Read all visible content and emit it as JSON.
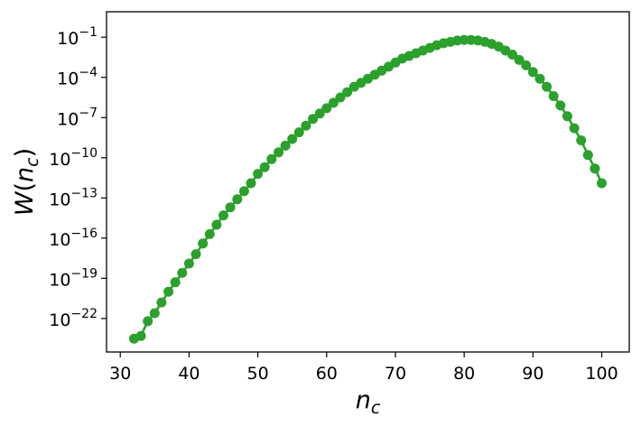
{
  "chart_data": {
    "type": "line",
    "title": "",
    "xlabel": "n_c",
    "ylabel": "W(n_c)",
    "xlim": [
      28,
      104
    ],
    "ylim_log10": [
      -24.5,
      0.9
    ],
    "y_scale": "log",
    "grid": false,
    "legend": "none",
    "x_ticks": [
      {
        "value": 30,
        "label": "30"
      },
      {
        "value": 40,
        "label": "40"
      },
      {
        "value": 50,
        "label": "50"
      },
      {
        "value": 60,
        "label": "60"
      },
      {
        "value": 70,
        "label": "70"
      },
      {
        "value": 80,
        "label": "80"
      },
      {
        "value": 90,
        "label": "90"
      },
      {
        "value": 100,
        "label": "100"
      }
    ],
    "y_ticks": [
      {
        "log10": -1,
        "base": "10",
        "exp": "−1"
      },
      {
        "log10": -4,
        "base": "10",
        "exp": "−4"
      },
      {
        "log10": -7,
        "base": "10",
        "exp": "−7"
      },
      {
        "log10": -10,
        "base": "10",
        "exp": "−10"
      },
      {
        "log10": -13,
        "base": "10",
        "exp": "−13"
      },
      {
        "log10": -16,
        "base": "10",
        "exp": "−16"
      },
      {
        "log10": -19,
        "base": "10",
        "exp": "−19"
      },
      {
        "log10": -22,
        "base": "10",
        "exp": "−22"
      }
    ],
    "series": [
      {
        "color": "#2ca02c",
        "x": [
          32,
          33,
          34,
          35,
          36,
          37,
          38,
          39,
          40,
          41,
          42,
          43,
          44,
          45,
          46,
          47,
          48,
          49,
          50,
          51,
          52,
          53,
          54,
          55,
          56,
          57,
          58,
          59,
          60,
          61,
          62,
          63,
          64,
          65,
          66,
          67,
          68,
          69,
          70,
          71,
          72,
          73,
          74,
          75,
          76,
          77,
          78,
          79,
          80,
          81,
          82,
          83,
          84,
          85,
          86,
          87,
          88,
          89,
          90,
          91,
          92,
          93,
          94,
          95,
          96,
          97,
          98,
          99,
          100
        ],
        "log10_y": [
          -23.5,
          -23.3,
          -22.2,
          -21.6,
          -20.8,
          -20.0,
          -19.3,
          -18.6,
          -17.9,
          -17.2,
          -16.4,
          -15.7,
          -15.0,
          -14.3,
          -13.7,
          -13.1,
          -12.5,
          -11.9,
          -11.2,
          -10.7,
          -10.1,
          -9.6,
          -9.1,
          -8.6,
          -8.1,
          -7.6,
          -7.1,
          -6.7,
          -6.3,
          -5.9,
          -5.5,
          -5.1,
          -4.7,
          -4.4,
          -4.1,
          -3.8,
          -3.5,
          -3.2,
          -2.9,
          -2.6,
          -2.4,
          -2.2,
          -2.0,
          -1.8,
          -1.6,
          -1.45,
          -1.35,
          -1.25,
          -1.2,
          -1.2,
          -1.25,
          -1.35,
          -1.5,
          -1.7,
          -2.0,
          -2.3,
          -2.7,
          -3.1,
          -3.6,
          -4.1,
          -4.7,
          -5.4,
          -6.1,
          -6.9,
          -7.8,
          -8.7,
          -9.8,
          -10.8,
          -11.9
        ]
      }
    ]
  }
}
